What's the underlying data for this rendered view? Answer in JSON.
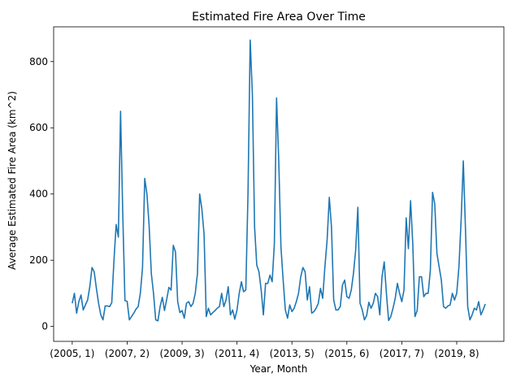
{
  "chart_data": {
    "type": "line",
    "title": "Estimated Fire Area Over Time",
    "xlabel": "Year, Month",
    "ylabel": "Average Estimated Fire Area (km^2)",
    "ylim": [
      -45,
      905
    ],
    "yticks": [
      0,
      200,
      400,
      600,
      800
    ],
    "grid": false,
    "legend": "none",
    "x_tick_labels": [
      "(2005, 1)",
      "(2007, 2)",
      "(2009, 3)",
      "(2011, 4)",
      "(2013, 5)",
      "(2015, 6)",
      "(2017, 7)",
      "(2019, 8)"
    ],
    "x_tick_indices": [
      0,
      25,
      50,
      75,
      100,
      125,
      150,
      175
    ],
    "series": [
      {
        "color": "#1f77b4",
        "values": [
          70,
          100,
          40,
          75,
          95,
          50,
          65,
          80,
          120,
          178,
          165,
          115,
          70,
          35,
          20,
          62,
          62,
          60,
          72,
          200,
          308,
          270,
          650,
          340,
          78,
          76,
          20,
          30,
          40,
          52,
          60,
          100,
          178,
          447,
          400,
          305,
          160,
          100,
          20,
          17,
          60,
          88,
          48,
          82,
          118,
          110,
          245,
          225,
          75,
          42,
          48,
          25,
          70,
          75,
          60,
          70,
          100,
          160,
          400,
          355,
          280,
          30,
          55,
          35,
          42,
          48,
          55,
          60,
          100,
          60,
          80,
          120,
          35,
          50,
          22,
          50,
          100,
          135,
          105,
          110,
          400,
          865,
          700,
          300,
          185,
          165,
          110,
          35,
          130,
          130,
          155,
          135,
          250,
          690,
          500,
          240,
          140,
          50,
          25,
          65,
          45,
          55,
          75,
          100,
          150,
          178,
          165,
          80,
          120,
          40,
          45,
          55,
          70,
          115,
          85,
          180,
          260,
          390,
          300,
          80,
          50,
          50,
          60,
          125,
          140,
          90,
          85,
          110,
          160,
          230,
          360,
          70,
          50,
          20,
          33,
          73,
          55,
          70,
          100,
          90,
          35,
          150,
          195,
          100,
          18,
          30,
          55,
          85,
          130,
          100,
          75,
          110,
          328,
          235,
          380,
          250,
          30,
          48,
          150,
          150,
          90,
          100,
          100,
          170,
          405,
          370,
          220,
          180,
          140,
          60,
          55,
          62,
          65,
          100,
          80,
          100,
          180,
          320,
          500,
          290,
          60,
          20,
          35,
          55,
          50,
          75,
          35,
          50,
          68
        ]
      }
    ]
  }
}
